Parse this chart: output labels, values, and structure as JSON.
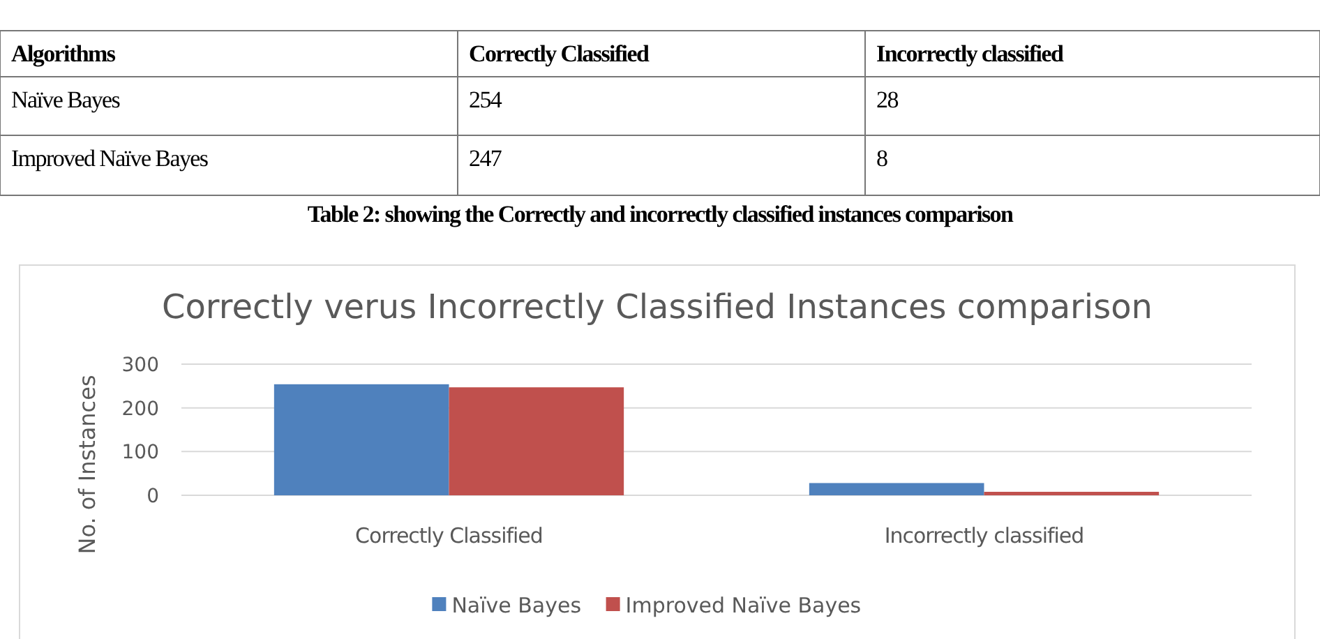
{
  "chart_data": {
    "type": "bar",
    "title": "Correctly verus Incorrectly Classified Instances comparison",
    "ylabel": "No. of Instances",
    "categories": [
      "Correctly Classified",
      "Incorrectly classified"
    ],
    "series": [
      {
        "name": "Naïve Bayes",
        "color": "#4f81bd",
        "values": [
          254,
          28
        ]
      },
      {
        "name": "Improved Naïve Bayes",
        "color": "#c0504d",
        "values": [
          247,
          8
        ]
      }
    ],
    "ylim": [
      0,
      300
    ],
    "yticks": [
      0,
      100,
      200,
      300
    ],
    "grid": "y",
    "legend": "bottom",
    "data_labels": true,
    "annotations": [
      "Algorithms",
      "Table 2: showing   the  Correctly and incorrectly classified instances comparison"
    ]
  }
}
